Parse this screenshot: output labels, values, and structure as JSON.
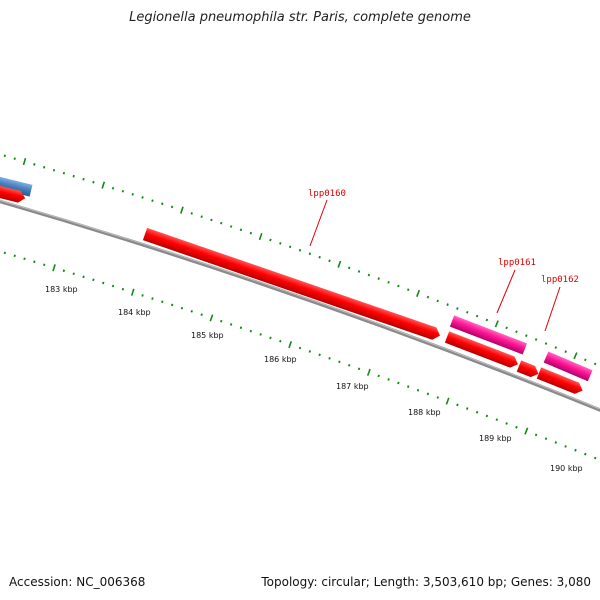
{
  "title": "Legionella pneumophila str. Paris, complete genome",
  "footer": {
    "accession": "Accession: NC_006368",
    "summary": "Topology: circular; Length: 3,503,610 bp; Genes: 3,080"
  },
  "colors": {
    "backbone": "#808080",
    "gene_forward": "#ff0000",
    "gene_pink": "#ff1493",
    "gene_blue": "#4a82c0",
    "tick": "#138a13",
    "label": "#dd0000"
  },
  "scale": {
    "unit": "kbp",
    "labels": [
      "183 kbp",
      "184 kbp",
      "185 kbp",
      "186 kbp",
      "187 kbp",
      "188 kbp",
      "189 kbp",
      "190 kbp"
    ]
  },
  "gene_labels": [
    "lpp0160",
    "lpp0161",
    "lpp0162"
  ]
}
